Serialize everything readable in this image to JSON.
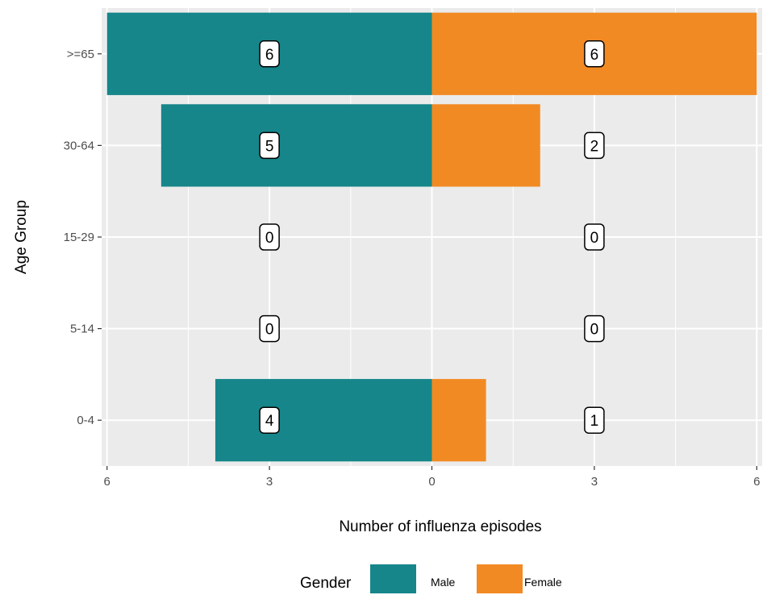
{
  "chart_data": {
    "type": "bar",
    "orientation": "horizontal",
    "layout": "population-pyramid",
    "categories": [
      "0-4",
      "5-14",
      "15-29",
      "30-64",
      ">=65"
    ],
    "series": [
      {
        "name": "Male",
        "values": [
          4,
          0,
          0,
          5,
          6
        ],
        "color": "#16868A",
        "side": "left"
      },
      {
        "name": "Female",
        "values": [
          1,
          0,
          0,
          2,
          6
        ],
        "color": "#F28A24",
        "side": "right"
      }
    ],
    "xlabel": "Number of influenza episodes",
    "ylabel": "Age Group",
    "x_ticks": [
      -6,
      -3,
      0,
      3,
      6
    ],
    "x_tick_labels": [
      "6",
      "3",
      "0",
      "3",
      "6"
    ],
    "xlim": [
      -6.1,
      6.1
    ],
    "data_label_offset": 3,
    "grid": true,
    "legend": {
      "title": "Gender",
      "position": "bottom"
    },
    "panel_background": "#EBEBEB",
    "grid_color": "#FFFFFF"
  }
}
